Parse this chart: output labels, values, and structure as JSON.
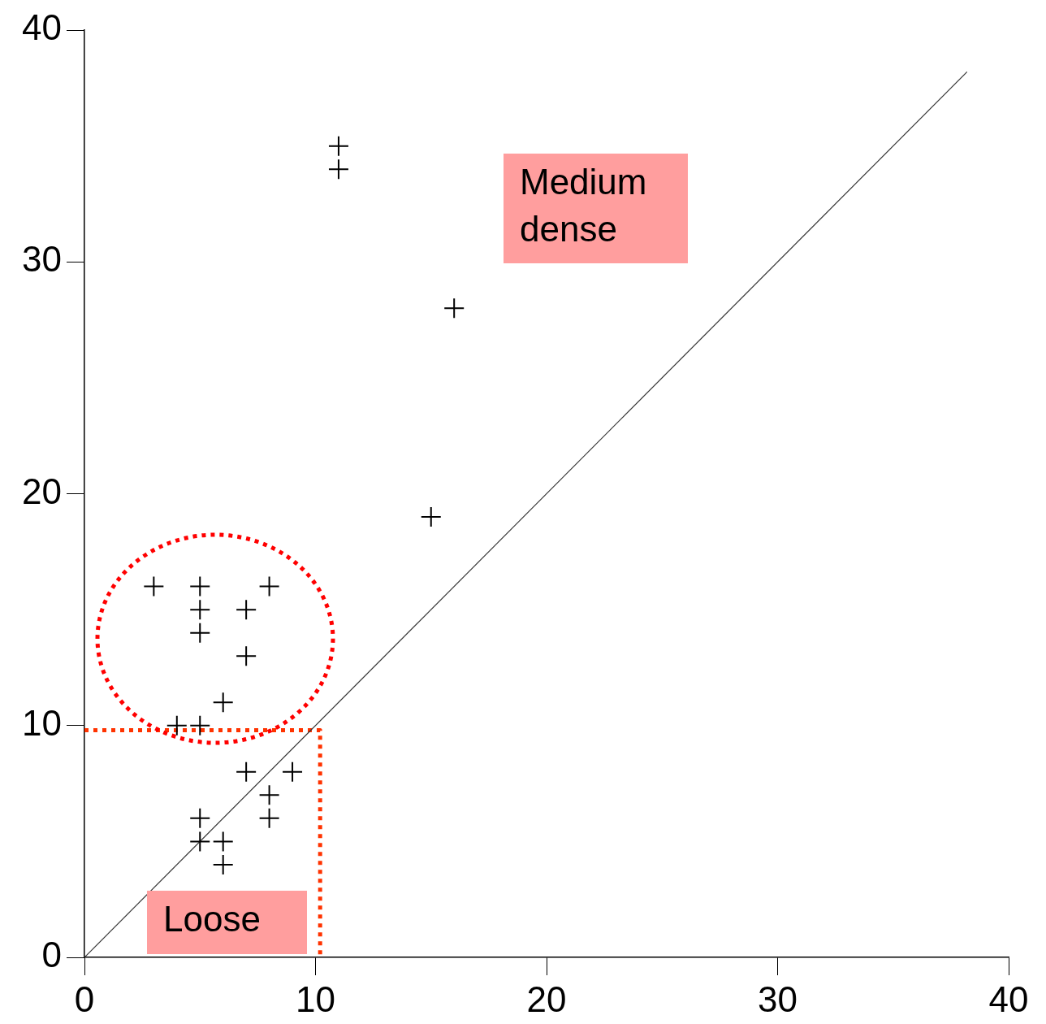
{
  "chart_data": {
    "type": "scatter",
    "xlim": [
      0,
      40
    ],
    "ylim": [
      0,
      40
    ],
    "xticks": [
      0,
      10,
      20,
      30,
      40
    ],
    "yticks": [
      0,
      10,
      20,
      30,
      40
    ],
    "annotations": [
      "Medium dense",
      "Loose"
    ],
    "series": [
      {
        "type": "scatter",
        "color": "#000000",
        "marker": "cross",
        "x": [
          11,
          11,
          16,
          15,
          3,
          5,
          5,
          5,
          7,
          8,
          7,
          6,
          4,
          5,
          7,
          9,
          8,
          8,
          5,
          5,
          6,
          6
        ],
        "values": [
          35,
          34,
          28,
          19,
          16,
          16,
          15,
          14,
          15,
          16,
          13,
          11,
          10,
          10,
          8,
          8,
          7,
          6,
          6,
          5,
          5,
          4
        ]
      },
      {
        "type": "line",
        "color": "#333333",
        "marker": "none",
        "line_style": "solid",
        "x": [
          0,
          38.2
        ],
        "values": [
          0,
          38.2
        ]
      },
      {
        "type": "line",
        "color": "#ff3300",
        "marker": "none",
        "line_style": "dotted",
        "x": [
          0,
          10.2,
          10.2
        ],
        "values": [
          9.8,
          9.8,
          0
        ]
      }
    ]
  }
}
